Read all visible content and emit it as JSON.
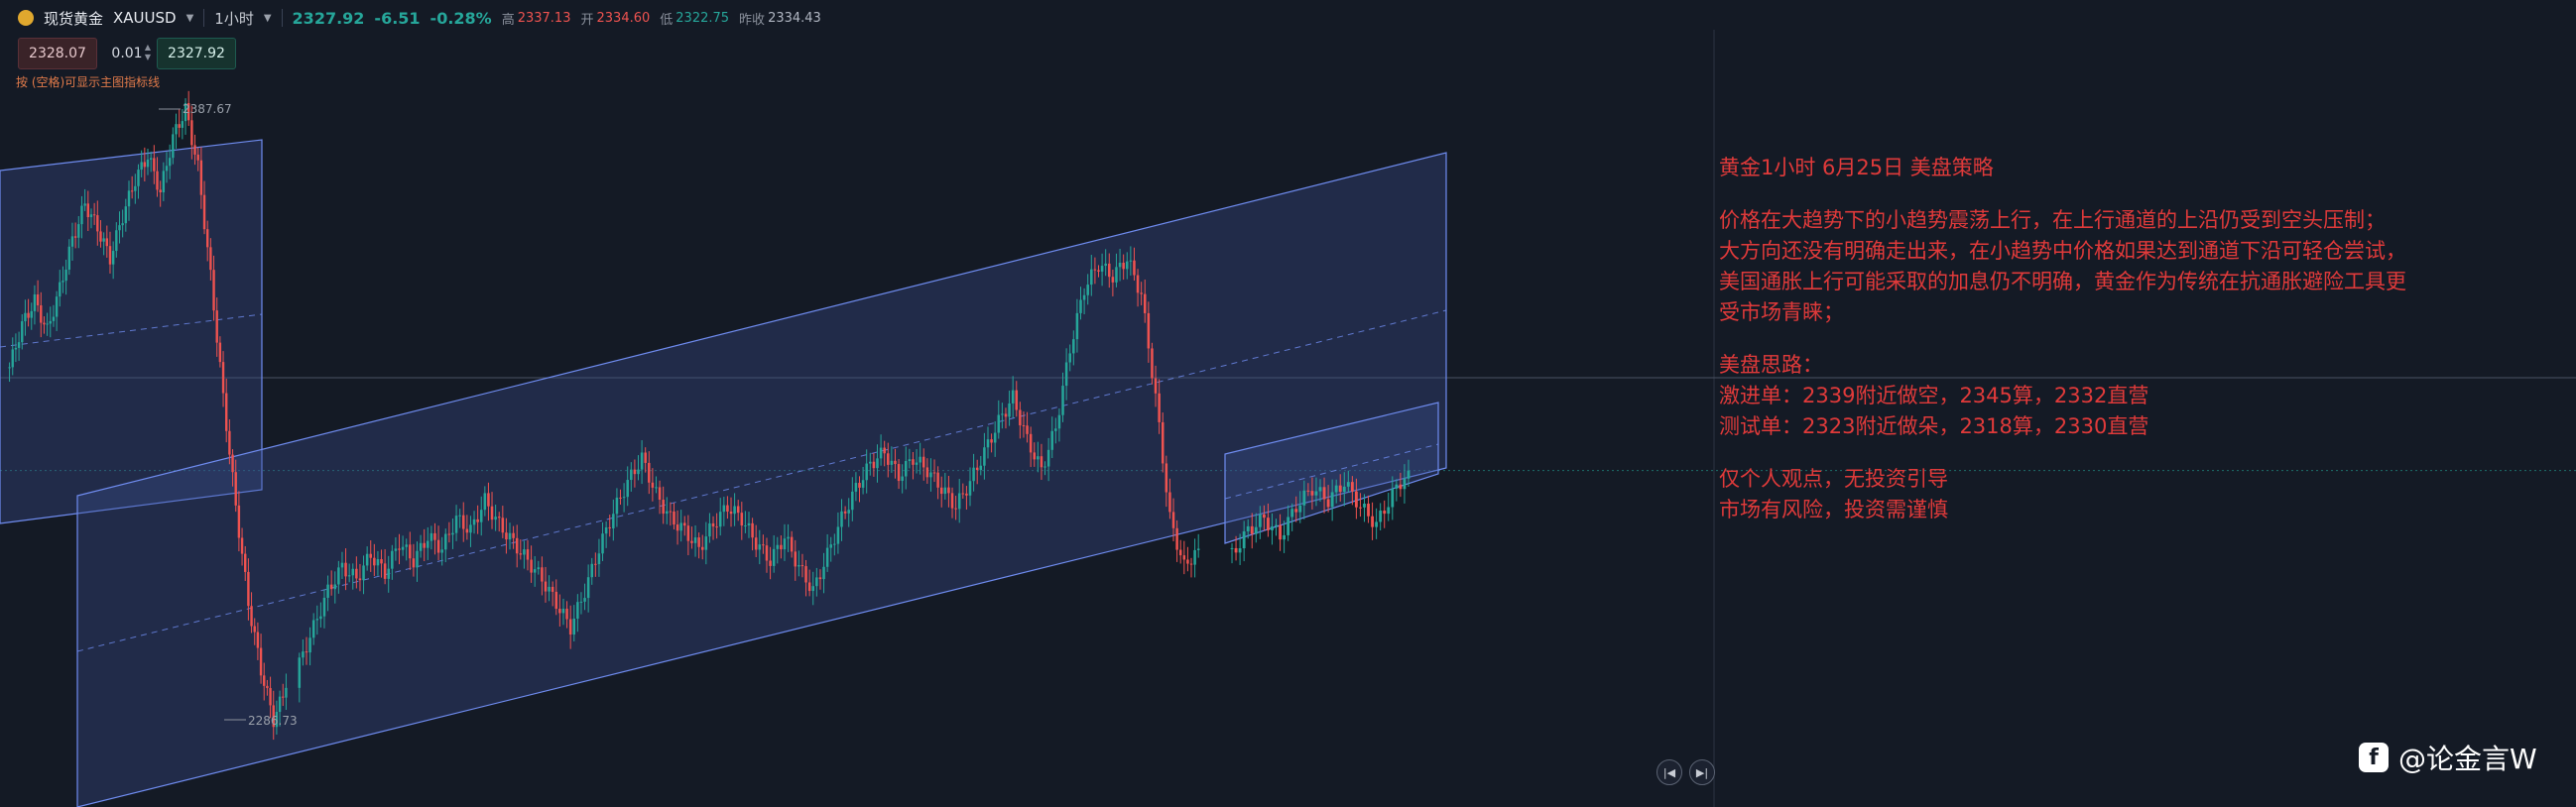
{
  "header": {
    "symbol_cn": "现货黄金",
    "symbol": "XAUUSD",
    "timeframe": "1小时",
    "last_price": "2327.92",
    "change": "-6.51",
    "change_pct": "-0.28%",
    "high_label": "高",
    "high": "2337.13",
    "open_label": "开",
    "open": "2334.60",
    "low_label": "低",
    "low": "2322.75",
    "prev_close_label": "昨收",
    "prev_close": "2334.43"
  },
  "order": {
    "bid": "2328.07",
    "qty": "0.01",
    "ask": "2327.92",
    "hint": "按 (空格)可显示主图指标线"
  },
  "note": {
    "title": "黄金1小时 6月25日 美盘策略",
    "p1": "价格在大趋势下的小趋势震荡上行，在上行通道的上沿仍受到空头压制；",
    "p2": "大方向还没有明确走出来，在小趋势中价格如果达到通道下沿可轻仓尝试，",
    "p3": "美国通胀上行可能采取的加息仍不明确，黄金作为传统在抗通胀避险工具更",
    "p4": "受市场青睐；",
    "idea_title": "美盘思路：",
    "idea1": "激进单：2339附近做空，2345算，2332直营",
    "idea2": "测试单：2323附近做朵，2318算，2330直营",
    "disc1": "仅个人观点，无投资引导",
    "disc2": "市场有风险，投资需谨慎"
  },
  "watermark": "@论金言W",
  "colors": {
    "up": "#26a69a",
    "down": "#ef5350",
    "channel_fill": "#3a4e8c",
    "channel_line": "#6f8cf0",
    "note_text": "#e03a3a"
  },
  "chart_data": {
    "type": "candlestick",
    "timeframe": "1小时",
    "annotations": [
      {
        "label": "2387.67",
        "value": 2387.67,
        "kind": "high"
      },
      {
        "label": "2286.73",
        "value": 2286.73,
        "kind": "low"
      }
    ],
    "ylim": [
      2270,
      2400
    ],
    "current_price": 2327.92,
    "series": [
      {
        "segment": 1,
        "values": [
          2345,
          2352,
          2356,
          2351,
          2358,
          2366,
          2372,
          2368,
          2363,
          2370,
          2376,
          2380,
          2374,
          2383,
          2387.67,
          2378,
          2360,
          2340,
          2322,
          2306,
          2295,
          2286.73,
          2292
        ]
      },
      {
        "segment": 2,
        "values": [
          2296,
          2302,
          2308,
          2312,
          2310,
          2314,
          2311,
          2316,
          2313,
          2317,
          2315,
          2320,
          2318,
          2323,
          2319,
          2316,
          2313,
          2310,
          2306,
          2302,
          2308,
          2315,
          2321,
          2326,
          2330,
          2324,
          2320,
          2318,
          2315,
          2319,
          2322,
          2320,
          2316,
          2313,
          2317,
          2312,
          2308,
          2314,
          2320,
          2325,
          2329,
          2331,
          2327,
          2330,
          2328,
          2325,
          2322,
          2326,
          2331,
          2336,
          2340,
          2333,
          2328,
          2335,
          2348,
          2358,
          2362,
          2360,
          2363,
          2357,
          2340,
          2320,
          2312,
          2315
        ]
      },
      {
        "segment": 3,
        "values": [
          2314,
          2318,
          2320,
          2317,
          2322,
          2325,
          2323,
          2326,
          2322,
          2319,
          2324,
          2327.92
        ]
      }
    ]
  }
}
